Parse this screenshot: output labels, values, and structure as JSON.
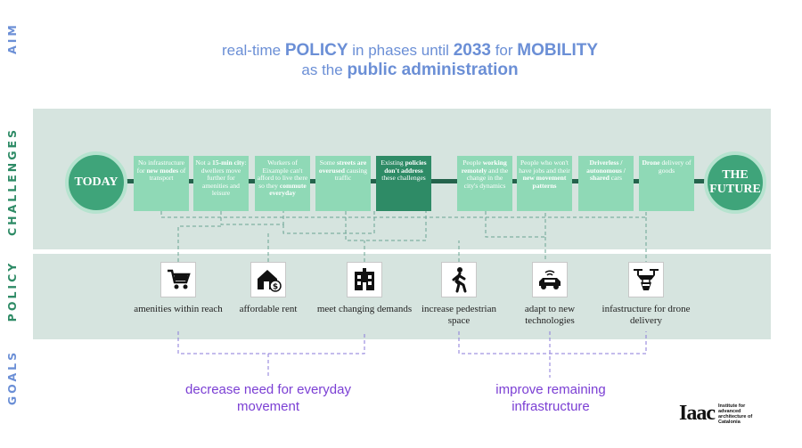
{
  "side_labels": {
    "aim": "AIM",
    "challenges": "CHALLENGES",
    "policy": "POLICY",
    "goals": "GOALS"
  },
  "aim": {
    "line1_pre": "real-time ",
    "line1_bold1": "POLICY",
    "line1_mid": " in phases until ",
    "line1_bold2": "2033",
    "line1_mid2": " for ",
    "line1_bold3": "MOBILITY",
    "line2_pre": "as the ",
    "line2_bold": "public administration"
  },
  "timeline": {
    "start": "TODAY",
    "end": "THE FUTURE",
    "challenges": [
      {
        "parts": [
          "No infrastructure for ",
          "new modes",
          " of transport"
        ],
        "bold": [
          false,
          true,
          false
        ]
      },
      {
        "parts": [
          "Not a ",
          "15-min city",
          ": dwellers move further for amenities and leisure"
        ],
        "bold": [
          false,
          true,
          false
        ]
      },
      {
        "parts": [
          "Workers of Eixample can't afford to live there so they ",
          "commute everyday",
          ""
        ],
        "bold": [
          false,
          true,
          false
        ]
      },
      {
        "parts": [
          "Some ",
          "streets are overused",
          " causing traffic"
        ],
        "bold": [
          false,
          true,
          false
        ]
      },
      {
        "parts": [
          "Existing ",
          "policies don't address",
          " these challenges"
        ],
        "bold": [
          false,
          true,
          false
        ]
      },
      {
        "parts": [
          "People ",
          "working remotely",
          " and the change in the city's dynamics"
        ],
        "bold": [
          false,
          true,
          false
        ]
      },
      {
        "parts": [
          "People who won't have jobs and their ",
          "new movement patterns",
          ""
        ],
        "bold": [
          false,
          true,
          false
        ]
      },
      {
        "parts": [
          "",
          "Driverless / autonomous / shared",
          " cars"
        ],
        "bold": [
          false,
          true,
          false
        ]
      },
      {
        "parts": [
          "",
          "Drone",
          " delivery of goods"
        ],
        "bold": [
          false,
          true,
          false
        ]
      }
    ]
  },
  "policies": [
    {
      "label": "amenities within reach",
      "icon": "shopping-cart-icon"
    },
    {
      "label": "affordable rent",
      "icon": "house-dollar-icon"
    },
    {
      "label": "meet changing demands",
      "icon": "building-icon"
    },
    {
      "label": "increase pedestrian space",
      "icon": "pedestrian-icon"
    },
    {
      "label": "adapt to new technologies",
      "icon": "autonomous-car-icon"
    },
    {
      "label": "infastructure for drone delivery",
      "icon": "drone-icon"
    }
  ],
  "goals": [
    {
      "label": "decrease need for everyday movement"
    },
    {
      "label": "improve remaining infrastructure"
    }
  ],
  "logo": {
    "mark": "Iaac",
    "sub": "Institute for advanced architecture of Catalonia"
  },
  "colors": {
    "aim": "#6b8fd6",
    "green_dark": "#2e8b66",
    "green_light": "#8fd9b6",
    "band": "#d6e4df",
    "goal": "#7b3fd4"
  }
}
